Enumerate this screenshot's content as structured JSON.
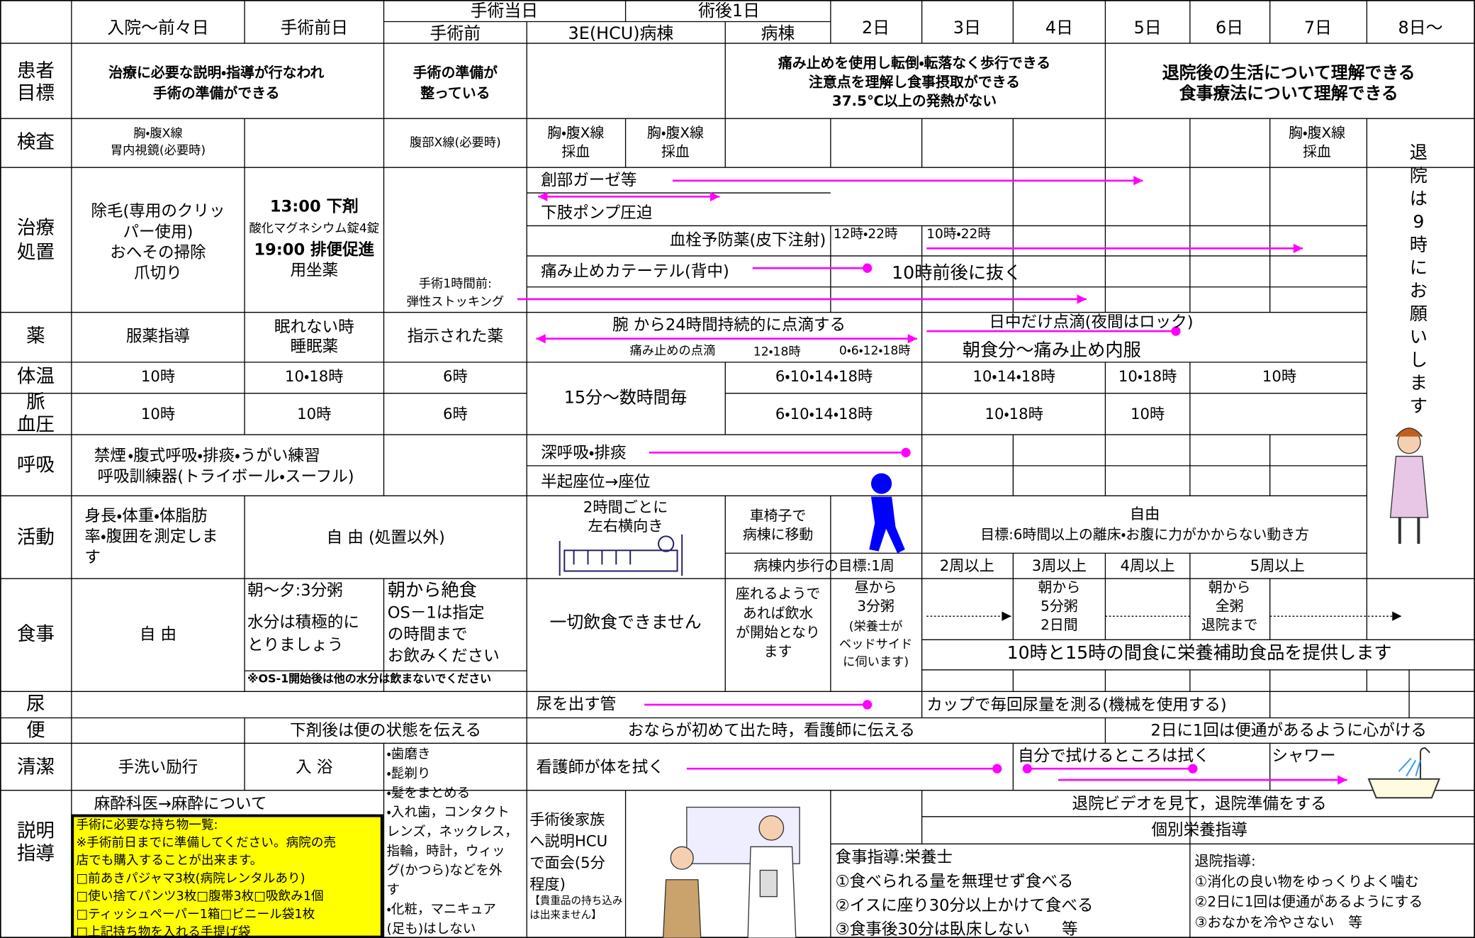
{
  "header": [
    "入院～前々日",
    "手術前日",
    "手術当日",
    "術後1日",
    "手術前",
    "3E(HCU)病棟",
    "病棟",
    "2日",
    "3日",
    "4日",
    "5日",
    "6日",
    "7日",
    "8日～"
  ],
  "discharge_note": [
    "退",
    "院",
    "は",
    "9",
    "時",
    "に",
    "お",
    "願",
    "い",
    "し",
    "ま",
    "す"
  ],
  "rows": [
    {
      "label": [
        "患者",
        "目標"
      ],
      "items": [
        [
          "治療に必要な説明・指導が行なわれ",
          "手術の準備ができる"
        ],
        [
          "手術の準備が",
          "整っている"
        ],
        [
          "痛み止めを使用し転倒・転落なく歩行できる",
          "注意点を理解し食事摂取ができる",
          "37.5℃以上の発熱がない"
        ],
        [
          "退院後の生活について理解できる",
          "食事療法について理解できる"
        ]
      ]
    },
    {
      "label": [
        "検査"
      ],
      "items": [
        [
          "胸・腹X線",
          "胃内視鏡(必要時)"
        ],
        [
          "腹部X線(必要時)"
        ],
        [
          "胸・腹X線",
          "採血"
        ],
        [
          "胸・腹X線",
          "採血"
        ],
        [
          "胸・腹X線",
          "採血"
        ]
      ]
    },
    {
      "label": [
        "治療",
        "処置"
      ],
      "items": [
        [
          "除毛(専用のクリッ",
          "パー使用)",
          "おへその掃除",
          "爪切り"
        ],
        [
          "13:00 下剤"
        ],
        [
          "酸化マグネシウム錠4錠"
        ],
        [
          "19:00 排便促進"
        ],
        [
          "用坐薬"
        ],
        [
          "手術1時間前:",
          "弾性ストッキング"
        ],
        [
          "創部ガーゼ等"
        ],
        [
          "下肢ポンプ圧迫"
        ],
        [
          "血栓予防薬(皮下注射)"
        ],
        [
          "12時・22時"
        ],
        [
          "10時・22時"
        ],
        [
          "痛み止めカテーテル(背中)"
        ],
        [
          "10時前後に抜く"
        ]
      ]
    },
    {
      "label": [
        "薬"
      ],
      "items": [
        [
          "服薬指導"
        ],
        [
          "眠れない時",
          "睡眠薬"
        ],
        [
          "指示された薬"
        ],
        [
          "腕 から24時間持続的に点滴する"
        ],
        [
          "痛み止めの点滴"
        ],
        [
          "12・18時"
        ],
        [
          "0・6・12・18時"
        ],
        [
          "日中だけ点滴(夜間はロック)"
        ],
        [
          "朝食分～痛み止め内服"
        ]
      ]
    },
    {
      "label": [
        "体温"
      ],
      "items": [
        [
          "10時"
        ],
        [
          "10・18時"
        ],
        [
          "6時"
        ],
        [
          "15分～数時間毎"
        ],
        [
          "6・10・14・18時"
        ],
        [
          "10・14・18時"
        ],
        [
          "10・18時"
        ],
        [
          "10時"
        ]
      ]
    },
    {
      "label": [
        "脈",
        "血圧"
      ],
      "items": [
        [
          "10時"
        ],
        [
          "10時"
        ],
        [
          "6時"
        ],
        [
          "6・10・14・18時"
        ],
        [
          "10・18時"
        ],
        [
          "10時"
        ]
      ]
    },
    {
      "label": [
        "呼吸"
      ],
      "items": [
        [
          "禁煙"
        ],
        [
          "・腹式呼吸・排痰・うがい練習"
        ],
        [
          "呼吸訓練器(トライボール・スーフル)"
        ],
        [
          "深呼吸・排痰"
        ],
        [
          "半起座位→座位"
        ]
      ]
    },
    {
      "label": [
        "活動"
      ],
      "items": [
        [
          "身長・体重・体脂肪",
          "率・腹囲を測定しま",
          "す"
        ],
        [
          "自 由 (処置以外)"
        ],
        [
          "2時間ごとに",
          "左右横向き"
        ],
        [
          "車椅子で",
          "病棟に移動"
        ],
        [
          "病棟内歩行の目標:1周"
        ],
        [
          "自由"
        ],
        [
          "目標:6時間以上の離床・お腹に力がかからない動き方"
        ],
        [
          "2周以上"
        ],
        [
          "3周以上"
        ],
        [
          "4周以上"
        ],
        [
          "5周以上"
        ]
      ]
    },
    {
      "label": [
        "食事"
      ],
      "items": [
        [
          "自 由"
        ],
        [
          "朝～夕:3分粥"
        ],
        [
          "水分は積極的に",
          "とりましょう"
        ],
        [
          "朝から絶食"
        ],
        [
          "OS－1は指定",
          "の時間まで",
          "お飲みください"
        ],
        [
          "※OS-1開始後は他の水分は飲まないでください"
        ],
        [
          "一切飲食できません"
        ],
        [
          "座れるようで",
          "あれば飲水",
          "が開始となり",
          "ます"
        ],
        [
          "昼から",
          "3分粥"
        ],
        [
          "(栄養士が",
          "ベッドサイド",
          "に伺います)"
        ],
        [
          "朝から",
          "5分粥",
          "2日間"
        ],
        [
          "朝から",
          "全粥",
          "退院まで"
        ],
        [
          "10時と15時の間食に栄養補助食品を提供します"
        ]
      ]
    },
    {
      "label": [
        "尿"
      ],
      "items": [
        [
          "尿を出す管"
        ],
        [
          "カップで毎回尿量を測る(機械を使用する)"
        ]
      ]
    },
    {
      "label": [
        "便"
      ],
      "items": [
        [
          "下剤後は便の状態を伝える"
        ],
        [
          "おならが初めて出た時，看護師に伝える"
        ],
        [
          "2日に1回は便通があるように心がける"
        ]
      ]
    },
    {
      "label": [
        "清潔"
      ],
      "items": [
        [
          "手洗い励行"
        ],
        [
          "入 浴"
        ],
        [
          "・歯磨き",
          "・髭剃り",
          "・髪をまとめる",
          "・入れ歯，コンタクト",
          "レンズ，ネックレス，",
          "指輪，時計，ウィッ",
          "グ(かつら)などを外",
          "す",
          "・化粧，マニキュア",
          "(足も)はしない"
        ],
        [
          "看護師が体を拭く"
        ],
        [
          "自分で拭けるところは拭く"
        ],
        [
          "シャワー"
        ]
      ]
    },
    {
      "label": [
        "説明",
        "指導"
      ],
      "items": [
        [
          "麻酔科医→麻酔について"
        ],
        [
          "手術後家族",
          "へ説明HCU",
          "で面会(5分",
          "程度)"
        ],
        [
          "【貴重品の持ち込み",
          "は出来ません】"
        ],
        [
          "退院ビデオを見て，退院準備をする"
        ],
        [
          "個別栄養指導"
        ],
        [
          "食事指導:栄養士",
          "①食べられる量を無理せず食べる",
          "②イスに座り30分以上かけて食べる",
          "③食事後30分は臥床しない　　等"
        ],
        [
          "退院指導:",
          "①消化の良い物をゆっくりよく噛む",
          "②2日に1回は便通があるようにする",
          "③おなかを冷やさない　等"
        ]
      ]
    }
  ],
  "belongings": [
    "手術に必要な持ち物一覧:",
    "※手術前日までに準備してください。病院の売",
    "店でも購入することが出来ます。",
    "□前あきパジャマ3枚(病院レンタルあり)",
    "□使い捨てパンツ3枚□腹帯3枚□吸飲み1個",
    "□ティッシュペーパー1箱□ビニール袋1枚",
    "□上記持ち物を入れる手提げ袋"
  ]
}
